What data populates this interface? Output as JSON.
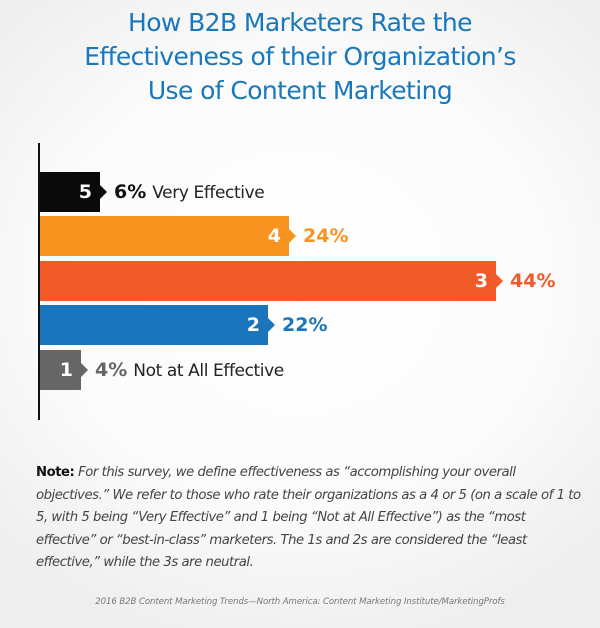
{
  "title": {
    "line1": "How B2B Marketers Rate the",
    "line2": "Effectiveness of their Organization’s",
    "line3": "Use of Content Marketing"
  },
  "bars": [
    {
      "rating": "5",
      "percent": "6%",
      "description": "Very Effective",
      "color": "#0a0a0a",
      "label_color": "#111111"
    },
    {
      "rating": "4",
      "percent": "24%",
      "description": "",
      "color": "#f7931e",
      "label_color": "#f7931e"
    },
    {
      "rating": "3",
      "percent": "44%",
      "description": "",
      "color": "#f15a29",
      "label_color": "#f15a29"
    },
    {
      "rating": "2",
      "percent": "22%",
      "description": "",
      "color": "#1b75bc",
      "label_color": "#1b75bc"
    },
    {
      "rating": "1",
      "percent": "4%",
      "description": "Not at All Effective",
      "color": "#666666",
      "label_color": "#666666"
    }
  ],
  "note": {
    "label": "Note:",
    "text": "For this survey, we define effectiveness as “accomplishing your overall objectives.” We refer to those who rate their organizations as a 4 or 5 (on a scale of 1 to 5, with 5 being “Very Effective” and 1 being “Not at All Effective”) as the “most effective” or “best-in-class” marketers. The 1s and 2s are considered the “least effective,” while the 3s are neutral."
  },
  "source": "2016 B2B Content Marketing Trends—North America: Content Marketing Institute/MarketingProfs",
  "chart_data": {
    "type": "bar",
    "orientation": "horizontal",
    "title": "How B2B Marketers Rate the Effectiveness of their Organization’s Use of Content Marketing",
    "categories": [
      "5 (Very Effective)",
      "4",
      "3",
      "2",
      "1 (Not at All Effective)"
    ],
    "values": [
      6,
      24,
      44,
      22,
      4
    ],
    "unit": "%",
    "colors": [
      "#0a0a0a",
      "#f7931e",
      "#f15a29",
      "#1b75bc",
      "#666666"
    ],
    "xlabel": "",
    "ylabel": "",
    "grid": false,
    "legend": "none",
    "annotations": [
      "Very Effective",
      "Not at All Effective"
    ]
  }
}
